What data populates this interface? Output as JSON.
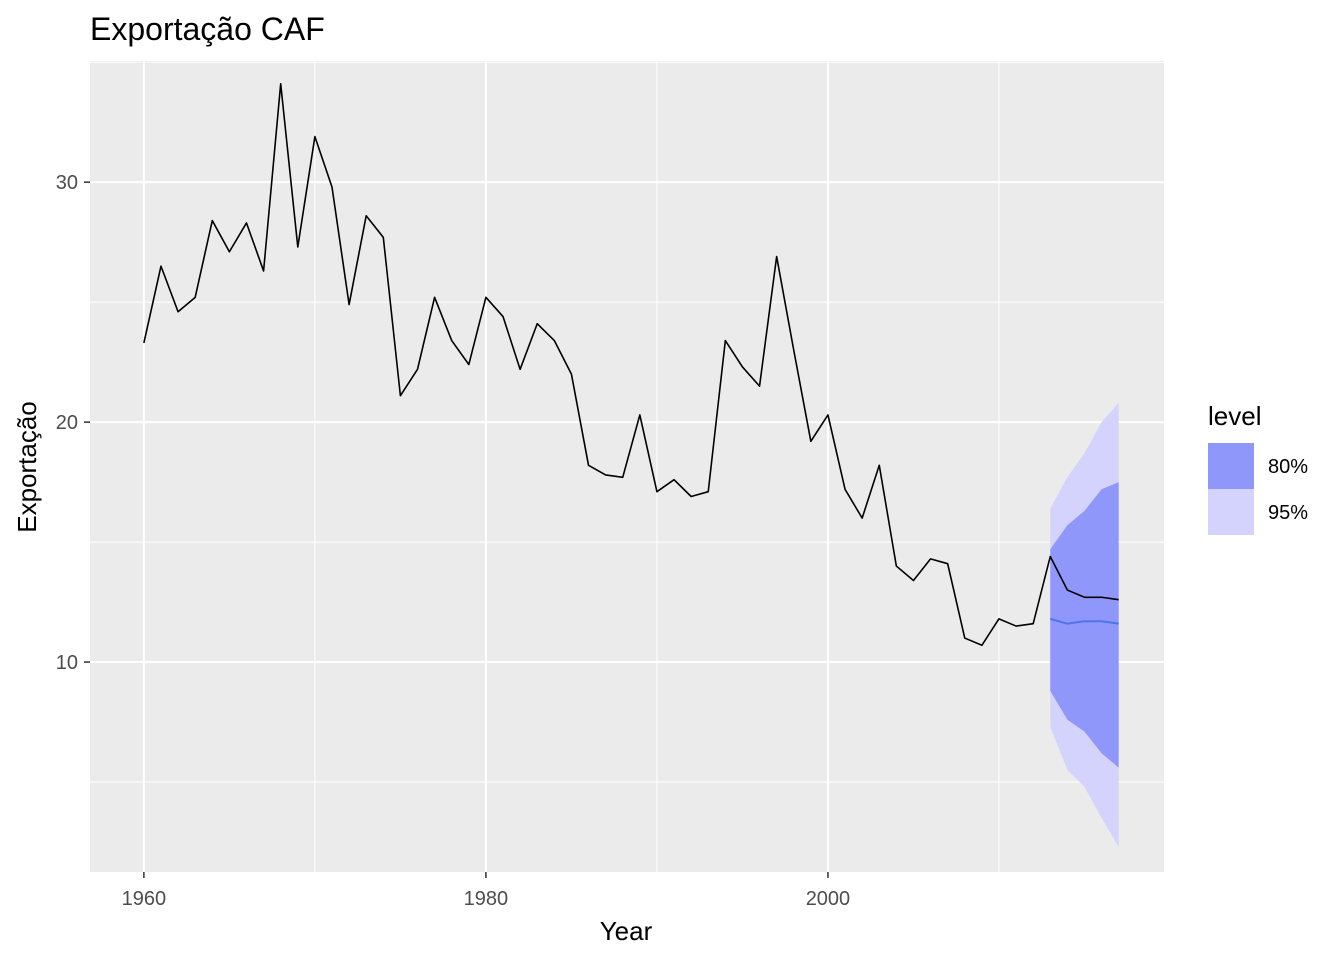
{
  "chart_data": {
    "type": "line",
    "title": "Exportação CAF",
    "xlabel": "Year",
    "ylabel": "Exportação",
    "xlim": [
      1956.85,
      2019.65
    ],
    "ylim": [
      1.25,
      35.05
    ],
    "x_ticks": [
      1960,
      1980,
      2000
    ],
    "x_tick_labels": [
      "1960",
      "1980",
      "2000"
    ],
    "x_minor_ticks": [
      1970,
      1990,
      2010
    ],
    "y_ticks": [
      10,
      20,
      30
    ],
    "y_tick_labels": [
      "10",
      "20",
      "30"
    ],
    "y_minor_ticks": [
      5,
      15,
      25,
      35
    ],
    "grid": true,
    "legend": {
      "title": "level",
      "position": "right",
      "entries": [
        {
          "label": "80%",
          "color": "#8f97fa"
        },
        {
          "label": "95%",
          "color": "#d3d3fd"
        }
      ]
    },
    "colors": {
      "panel_background": "#ebebeb",
      "grid": "#ffffff",
      "actual_line": "#000000",
      "forecast_line": "#4f75ea",
      "band_80": "#8f97fa",
      "band_95": "#d3d3fd"
    },
    "series": [
      {
        "x": [
          1960,
          1961,
          1962,
          1963,
          1964,
          1965,
          1966,
          1967,
          1968,
          1969,
          1970,
          1971,
          1972,
          1973,
          1974,
          1975,
          1976,
          1977,
          1978,
          1979,
          1980,
          1981,
          1982,
          1983,
          1984,
          1985,
          1986,
          1987,
          1988,
          1989,
          1990,
          1991,
          1992,
          1993,
          1994,
          1995,
          1996,
          1997,
          1998,
          1999,
          2000,
          2001,
          2002,
          2003,
          2004,
          2005,
          2006,
          2007,
          2008,
          2009,
          2010,
          2011,
          2012,
          2013,
          2014,
          2015,
          2016,
          2017
        ],
        "values": [
          23.3,
          26.5,
          24.6,
          25.2,
          28.4,
          27.1,
          28.3,
          26.3,
          34.1,
          27.3,
          31.9,
          29.8,
          24.9,
          28.6,
          27.7,
          21.1,
          22.2,
          25.2,
          23.4,
          22.4,
          25.2,
          24.4,
          22.2,
          24.1,
          23.4,
          22.0,
          18.2,
          17.8,
          17.7,
          20.3,
          17.1,
          17.6,
          16.9,
          17.1,
          23.4,
          22.3,
          21.5,
          26.9,
          23.0,
          19.2,
          20.3,
          17.2,
          16.0,
          18.2,
          14.0,
          13.4,
          14.3,
          14.1,
          11.0,
          10.7,
          11.8,
          11.5,
          11.6,
          14.4,
          13.0,
          12.7,
          12.7,
          12.6
        ]
      },
      {
        "x": [
          2013,
          2014,
          2015,
          2016,
          2017
        ],
        "values": [
          11.8,
          11.6,
          11.7,
          11.7,
          11.6
        ]
      }
    ],
    "bands": [
      {
        "name": "95%",
        "x": [
          2013,
          2014,
          2015,
          2016,
          2017
        ],
        "lower": [
          7.3,
          5.5,
          4.8,
          3.5,
          2.3
        ],
        "upper": [
          16.4,
          17.7,
          18.7,
          20.0,
          20.8
        ]
      },
      {
        "name": "80%",
        "x": [
          2013,
          2014,
          2015,
          2016,
          2017
        ],
        "lower": [
          8.8,
          7.6,
          7.1,
          6.2,
          5.6
        ],
        "upper": [
          14.7,
          15.7,
          16.3,
          17.2,
          17.5
        ]
      }
    ]
  }
}
